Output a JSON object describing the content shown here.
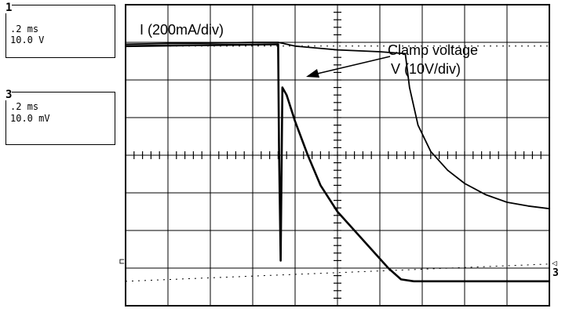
{
  "channels": [
    {
      "number": "1",
      "timebase": ".2 ms",
      "scale": "10.0 V"
    },
    {
      "number": "3",
      "timebase": ".2 ms",
      "scale": "10.0 mV"
    }
  ],
  "chart_data": {
    "type": "line",
    "title": "",
    "grid": true,
    "divisions": {
      "x": 10,
      "y": 8
    },
    "xlabel": "",
    "ylabel": "",
    "ylim": [
      -4,
      4
    ],
    "xlim": [
      0,
      10
    ],
    "annotations": {
      "current_label": "I (200mA/div)",
      "clamp_label_1": "Clamp voltage",
      "clamp_label_2": "V (10V/div)"
    },
    "ground_markers": {
      "left": "⊏",
      "right": "◁",
      "channel": "3"
    },
    "series": [
      {
        "name": "I (200mA/div)",
        "x": [
          0,
          3.6,
          3.62,
          3.66,
          3.7,
          3.8,
          4.0,
          4.3,
          4.6,
          5.0,
          5.4,
          5.8,
          6.2,
          6.5,
          6.8,
          7.5,
          8.5,
          10
        ],
        "y": [
          2.9,
          2.95,
          0.2,
          -2.8,
          1.8,
          1.6,
          0.9,
          0.0,
          -0.8,
          -1.5,
          -2.0,
          -2.5,
          -3.0,
          -3.3,
          -3.35,
          -3.35,
          -3.35,
          -3.35
        ]
      },
      {
        "name": "V (10V/div)",
        "x": [
          0,
          1,
          2,
          3,
          3.6,
          4,
          5,
          6,
          6.6,
          6.7,
          6.9,
          7.2,
          7.6,
          8,
          8.5,
          9,
          9.5,
          10
        ],
        "y": [
          2.95,
          2.97,
          2.98,
          3.0,
          3.0,
          2.9,
          2.8,
          2.75,
          2.7,
          1.8,
          0.8,
          0.1,
          -0.4,
          -0.75,
          -1.05,
          -1.25,
          -1.35,
          -1.42
        ]
      }
    ]
  }
}
